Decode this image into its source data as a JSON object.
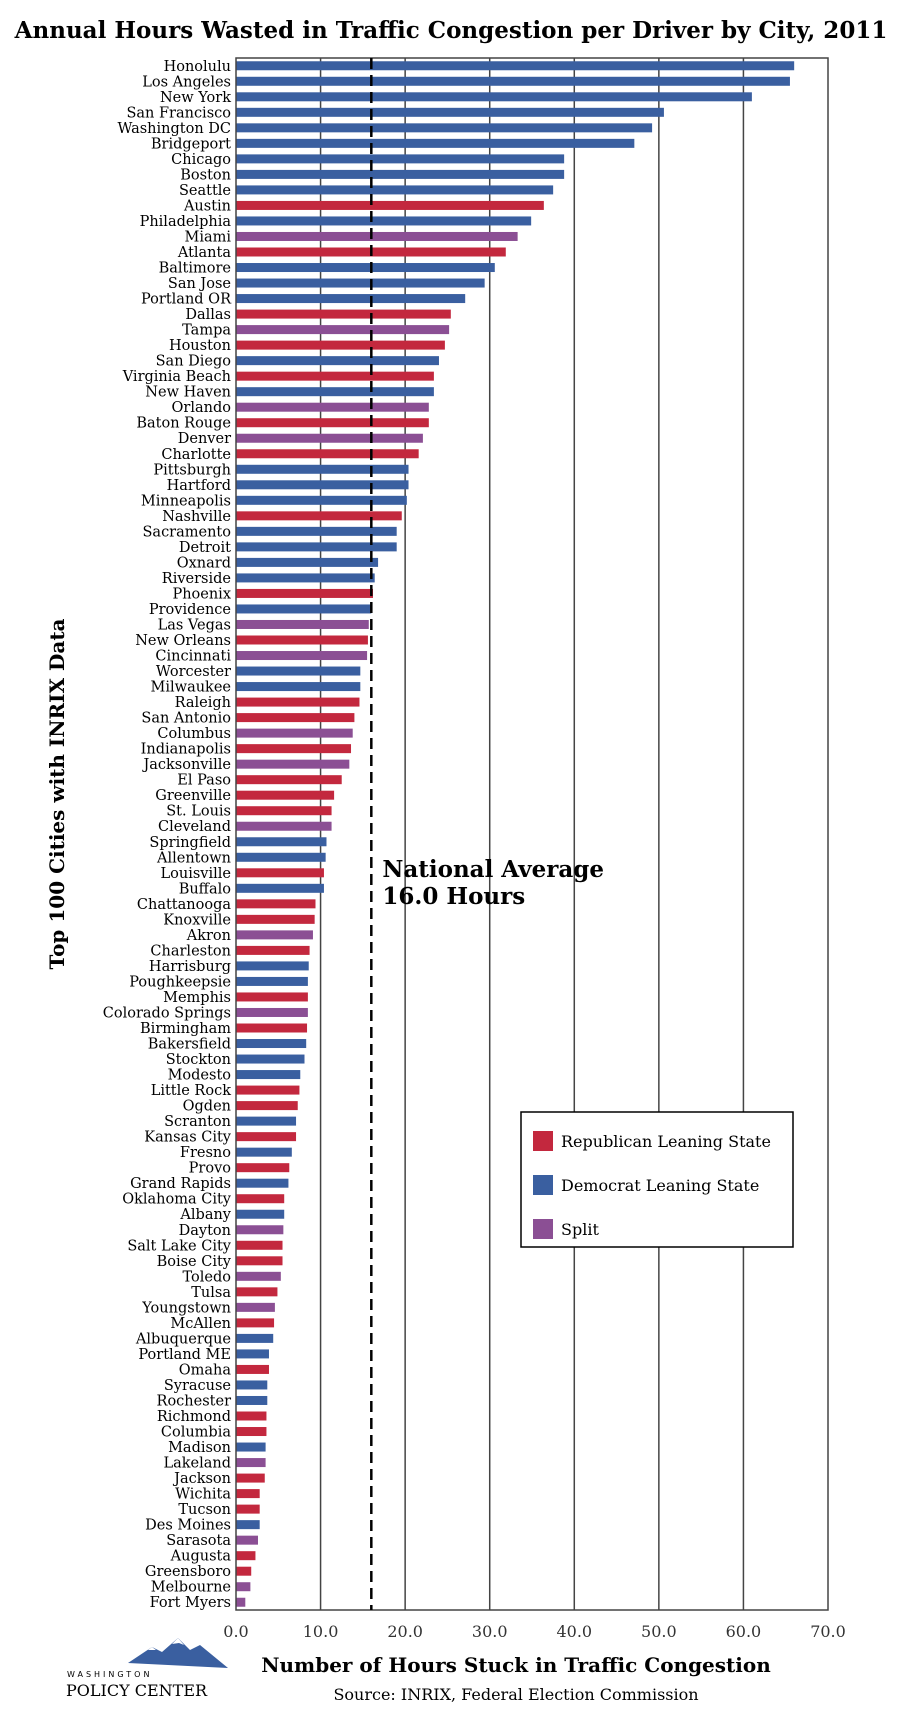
{
  "colors": {
    "republican": "#c3283e",
    "democrat": "#3a5fa0",
    "split": "#8b4f94"
  },
  "logo": {
    "line1": "WASHINGTON",
    "line2": "POLICY CENTER",
    "icon": "mountain-icon"
  },
  "chart_data": {
    "type": "bar",
    "orientation": "horizontal",
    "title": "Annual Hours Wasted in Traffic Congestion per Driver by City, 2011",
    "xlabel": "Number of Hours Stuck in Traffic Congestion",
    "ylabel": "Top 100 Cities with INRIX Data",
    "source": "Source: INRIX, Federal Election Commission",
    "xlim": [
      0,
      70
    ],
    "xticks": [
      "0.0",
      "10.0",
      "20.0",
      "30.0",
      "40.0",
      "50.0",
      "60.0",
      "70.0"
    ],
    "grid": "vertical",
    "reference_line": {
      "value": 16.0,
      "label_line1": "National Average",
      "label_line2": "16.0 Hours",
      "style": "dashed"
    },
    "legend": {
      "placement": "lower-right",
      "entries": [
        {
          "key": "R",
          "label": "Republican Leaning State"
        },
        {
          "key": "D",
          "label": "Democrat Leaning State"
        },
        {
          "key": "S",
          "label": "Split"
        }
      ]
    },
    "categories": [
      "Honolulu",
      "Los Angeles",
      "New York",
      "San Francisco",
      "Washington DC",
      "Bridgeport",
      "Chicago",
      "Boston",
      "Seattle",
      "Austin",
      "Philadelphia",
      "Miami",
      "Atlanta",
      "Baltimore",
      "San Jose",
      "Portland OR",
      "Dallas",
      "Tampa",
      "Houston",
      "San Diego",
      "Virginia Beach",
      "New Haven",
      "Orlando",
      "Baton Rouge",
      "Denver",
      "Charlotte",
      "Pittsburgh",
      "Hartford",
      "Minneapolis",
      "Nashville",
      "Sacramento",
      "Detroit",
      "Oxnard",
      "Riverside",
      "Phoenix",
      "Providence",
      "Las Vegas",
      "New Orleans",
      "Cincinnati",
      "Worcester",
      "Milwaukee",
      "Raleigh",
      "San Antonio",
      "Columbus",
      "Indianapolis",
      "Jacksonville",
      "El Paso",
      "Greenville",
      "St. Louis",
      "Cleveland",
      "Springfield",
      "Allentown",
      "Louisville",
      "Buffalo",
      "Chattanooga",
      "Knoxville",
      "Akron",
      "Charleston",
      "Harrisburg",
      "Poughkeepsie",
      "Memphis",
      "Colorado Springs",
      "Birmingham",
      "Bakersfield",
      "Stockton",
      "Modesto",
      "Little Rock",
      "Ogden",
      "Scranton",
      "Kansas City",
      "Fresno",
      "Provo",
      "Grand Rapids",
      "Oklahoma City",
      "Albany",
      "Dayton",
      "Salt Lake City",
      "Boise City",
      "Toledo",
      "Tulsa",
      "Youngstown",
      "McAllen",
      "Albuquerque",
      "Portland ME",
      "Omaha",
      "Syracuse",
      "Rochester",
      "Richmond",
      "Columbia",
      "Madison",
      "Lakeland",
      "Jackson",
      "Wichita",
      "Tucson",
      "Des Moines",
      "Sarasota",
      "Augusta",
      "Greensboro",
      "Melbourne",
      "Fort Myers"
    ],
    "values": [
      66.0,
      65.5,
      61.0,
      50.6,
      49.2,
      47.1,
      38.8,
      38.8,
      37.5,
      36.4,
      34.9,
      33.3,
      31.9,
      30.6,
      29.4,
      27.1,
      25.4,
      25.2,
      24.7,
      24.0,
      23.4,
      23.4,
      22.8,
      22.8,
      22.1,
      21.6,
      20.4,
      20.4,
      20.2,
      19.6,
      19.0,
      19.0,
      16.8,
      16.4,
      16.2,
      16.0,
      15.7,
      15.6,
      15.5,
      14.7,
      14.7,
      14.6,
      14.0,
      13.8,
      13.6,
      13.4,
      12.5,
      11.6,
      11.3,
      11.3,
      10.7,
      10.6,
      10.4,
      10.4,
      9.4,
      9.3,
      9.1,
      8.7,
      8.6,
      8.5,
      8.5,
      8.5,
      8.4,
      8.3,
      8.1,
      7.6,
      7.5,
      7.3,
      7.1,
      7.1,
      6.6,
      6.3,
      6.2,
      5.7,
      5.7,
      5.6,
      5.5,
      5.5,
      5.3,
      4.9,
      4.6,
      4.5,
      4.4,
      3.9,
      3.9,
      3.7,
      3.7,
      3.6,
      3.6,
      3.5,
      3.5,
      3.4,
      2.8,
      2.8,
      2.8,
      2.6,
      2.3,
      1.8,
      1.7,
      1.1
    ],
    "leaning": [
      "D",
      "D",
      "D",
      "D",
      "D",
      "D",
      "D",
      "D",
      "D",
      "R",
      "D",
      "S",
      "R",
      "D",
      "D",
      "D",
      "R",
      "S",
      "R",
      "D",
      "R",
      "D",
      "S",
      "R",
      "S",
      "R",
      "D",
      "D",
      "D",
      "R",
      "D",
      "D",
      "D",
      "D",
      "R",
      "D",
      "S",
      "R",
      "S",
      "D",
      "D",
      "R",
      "R",
      "S",
      "R",
      "S",
      "R",
      "R",
      "R",
      "S",
      "D",
      "D",
      "R",
      "D",
      "R",
      "R",
      "S",
      "R",
      "D",
      "D",
      "R",
      "S",
      "R",
      "D",
      "D",
      "D",
      "R",
      "R",
      "D",
      "R",
      "D",
      "R",
      "D",
      "R",
      "D",
      "S",
      "R",
      "R",
      "S",
      "R",
      "S",
      "R",
      "D",
      "D",
      "R",
      "D",
      "D",
      "R",
      "R",
      "D",
      "S",
      "R",
      "R",
      "R",
      "D",
      "S",
      "R",
      "R",
      "S",
      "S"
    ]
  }
}
